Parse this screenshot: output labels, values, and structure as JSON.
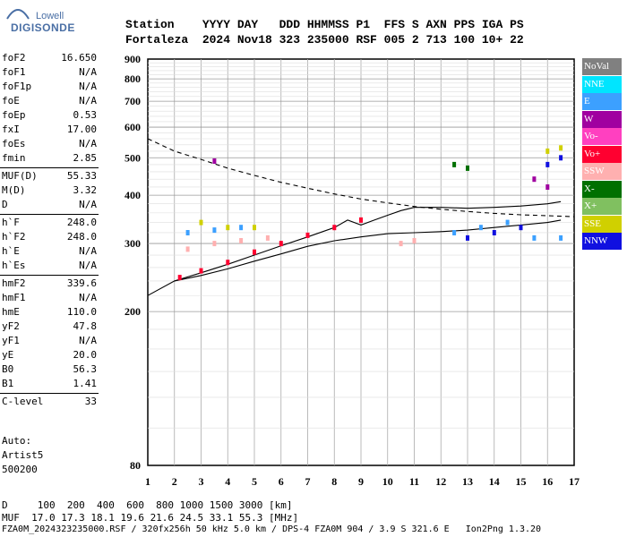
{
  "logo": {
    "top": "Lowell",
    "bottom": "DIGISONDE"
  },
  "header": {
    "row1": "Station    YYYY DAY   DDD HHMMSS P1  FFS S AXN PPS IGA PS",
    "row2": "Fortaleza  2024 Nov18 323 235000 RSF 005 2 713 100 10+ 22"
  },
  "params": [
    {
      "name": "foF2",
      "value": "16.650"
    },
    {
      "name": "foF1",
      "value": "N/A"
    },
    {
      "name": "foF1p",
      "value": "N/A"
    },
    {
      "name": "foE",
      "value": "N/A"
    },
    {
      "name": "foEp",
      "value": "0.53"
    },
    {
      "name": "fxI",
      "value": "17.00"
    },
    {
      "name": "foEs",
      "value": "N/A"
    },
    {
      "name": "fmin",
      "value": "2.85"
    },
    {
      "name": "MUF(D)",
      "value": "55.33"
    },
    {
      "name": "M(D)",
      "value": "3.32"
    },
    {
      "name": "D",
      "value": "N/A"
    },
    {
      "name": "h`F",
      "value": "248.0"
    },
    {
      "name": "h`F2",
      "value": "248.0"
    },
    {
      "name": "h`E",
      "value": "N/A"
    },
    {
      "name": "h`Es",
      "value": "N/A"
    },
    {
      "name": "hmF2",
      "value": "339.6"
    },
    {
      "name": "hmF1",
      "value": "N/A"
    },
    {
      "name": "hmE",
      "value": "110.0"
    },
    {
      "name": "yF2",
      "value": "47.8"
    },
    {
      "name": "yF1",
      "value": "N/A"
    },
    {
      "name": "yE",
      "value": "20.0"
    },
    {
      "name": "B0",
      "value": "56.3"
    },
    {
      "name": "B1",
      "value": "1.41"
    },
    {
      "name": "C-level",
      "value": "33"
    }
  ],
  "auto": {
    "line1": "Auto:",
    "line2": "Artist5",
    "line3": "500200"
  },
  "legend": [
    {
      "label": "NoVal",
      "color": "#808080"
    },
    {
      "label": "NNE",
      "color": "#00e5ff"
    },
    {
      "label": "E",
      "color": "#3ca0ff"
    },
    {
      "label": "W",
      "color": "#a000a0"
    },
    {
      "label": "Vo-",
      "color": "#ff40c0"
    },
    {
      "label": "Vo+",
      "color": "#ff0030"
    },
    {
      "label": "SSW",
      "color": "#ffb0b0"
    },
    {
      "label": "X-",
      "color": "#007000"
    },
    {
      "label": "X+",
      "color": "#80c060"
    },
    {
      "label": "SSE",
      "color": "#d0d000"
    },
    {
      "label": "NNW",
      "color": "#1010e0"
    }
  ],
  "bottom": {
    "line1": "D     100  200  400  600  800 1000 1500 3000 [km]",
    "line2": "MUF  17.0 17.3 18.1 19.6 21.6 24.5 33.1 55.3 [MHz]",
    "line3": "FZA0M_2024323235000.RSF / 320fx256h 50 kHz 5.0 km / DPS-4 FZA0M 904 / 3.9 S 321.6 E   Ion2Png 1.3.20"
  },
  "chart_data": {
    "type": "scatter",
    "title": "",
    "xlabel": "",
    "ylabel": "",
    "xlim": [
      1,
      17
    ],
    "ylim": [
      80,
      900
    ],
    "yscale": "log",
    "x_ticks": [
      1,
      2,
      3,
      4,
      5,
      6,
      7,
      8,
      9,
      10,
      11,
      12,
      13,
      14,
      15,
      16,
      17
    ],
    "y_ticks": [
      80,
      200,
      300,
      400,
      500,
      600,
      700,
      800,
      900
    ],
    "grid": true,
    "series": [
      {
        "name": "Vo+ (trace)",
        "color": "#ff0030",
        "points": [
          [
            2.2,
            245
          ],
          [
            3.0,
            255
          ],
          [
            4.0,
            268
          ],
          [
            5.0,
            285
          ],
          [
            6.0,
            300
          ],
          [
            7.0,
            315
          ],
          [
            8.0,
            330
          ],
          [
            9.0,
            345
          ]
        ]
      },
      {
        "name": "SSW (trace)",
        "color": "#ffb0b0",
        "points": [
          [
            2.5,
            290
          ],
          [
            3.5,
            300
          ],
          [
            4.5,
            305
          ],
          [
            5.5,
            310
          ],
          [
            10.5,
            300
          ],
          [
            11.0,
            305
          ]
        ]
      },
      {
        "name": "E (trace)",
        "color": "#3ca0ff",
        "points": [
          [
            2.5,
            320
          ],
          [
            3.5,
            325
          ],
          [
            4.5,
            330
          ],
          [
            12.5,
            320
          ],
          [
            13.5,
            330
          ],
          [
            14.5,
            340
          ],
          [
            15.5,
            310
          ],
          [
            16.5,
            310
          ]
        ]
      },
      {
        "name": "SSE (trace)",
        "color": "#d0d000",
        "points": [
          [
            3.0,
            340
          ],
          [
            4.0,
            330
          ],
          [
            5.0,
            330
          ],
          [
            16.0,
            520
          ],
          [
            16.5,
            530
          ]
        ]
      },
      {
        "name": "NNW (trace)",
        "color": "#1010e0",
        "points": [
          [
            13.0,
            310
          ],
          [
            14.0,
            320
          ],
          [
            15.0,
            330
          ],
          [
            16.0,
            480
          ],
          [
            16.5,
            500
          ]
        ]
      },
      {
        "name": "X- (trace)",
        "color": "#007000",
        "points": [
          [
            12.5,
            480
          ],
          [
            13.0,
            470
          ]
        ]
      },
      {
        "name": "W (trace)",
        "color": "#a000a0",
        "points": [
          [
            3.5,
            490
          ],
          [
            15.5,
            440
          ],
          [
            16.0,
            420
          ]
        ]
      }
    ],
    "curves": [
      {
        "name": "MUF dashed",
        "style": "dashed",
        "points": [
          [
            1,
            560
          ],
          [
            2,
            520
          ],
          [
            3,
            495
          ],
          [
            4,
            470
          ],
          [
            5,
            450
          ],
          [
            6,
            432
          ],
          [
            7,
            417
          ],
          [
            8,
            403
          ],
          [
            9,
            391
          ],
          [
            10,
            382
          ],
          [
            11,
            374
          ],
          [
            12,
            368
          ],
          [
            13,
            363
          ],
          [
            14,
            359
          ],
          [
            15,
            356
          ],
          [
            16,
            354
          ],
          [
            17,
            352
          ]
        ]
      },
      {
        "name": "virtual height trace",
        "style": "solid",
        "points": [
          [
            2,
            240
          ],
          [
            3,
            252
          ],
          [
            4,
            265
          ],
          [
            5,
            280
          ],
          [
            6,
            296
          ],
          [
            7,
            312
          ],
          [
            8,
            330
          ],
          [
            8.5,
            345
          ],
          [
            9,
            335
          ],
          [
            9.5,
            345
          ],
          [
            10,
            355
          ],
          [
            10.5,
            365
          ],
          [
            11,
            372
          ],
          [
            12,
            372
          ],
          [
            13,
            370
          ],
          [
            14,
            372
          ],
          [
            15,
            375
          ],
          [
            16,
            380
          ],
          [
            16.5,
            385
          ]
        ]
      },
      {
        "name": "lower envelope",
        "style": "solid",
        "points": [
          [
            1,
            220
          ],
          [
            2,
            240
          ],
          [
            3,
            248
          ],
          [
            4,
            258
          ],
          [
            5,
            270
          ],
          [
            6,
            282
          ],
          [
            7,
            295
          ],
          [
            8,
            305
          ],
          [
            9,
            312
          ],
          [
            10,
            318
          ],
          [
            11,
            320
          ],
          [
            12,
            322
          ],
          [
            13,
            325
          ],
          [
            14,
            330
          ],
          [
            15,
            335
          ],
          [
            16,
            340
          ],
          [
            16.5,
            345
          ]
        ]
      }
    ]
  }
}
